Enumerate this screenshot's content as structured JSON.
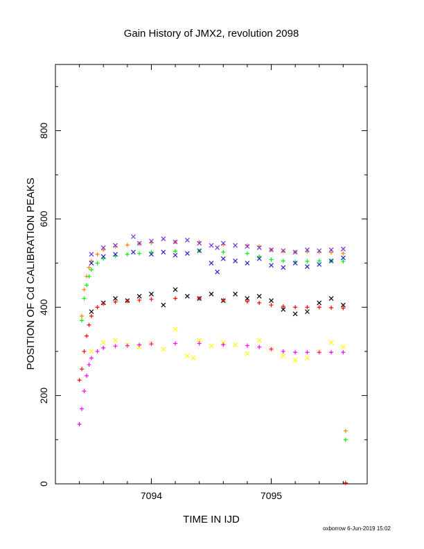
{
  "chart_data": {
    "type": "scatter",
    "title": "Gain History of JMX2, revolution 2098",
    "xlabel": "TIME IN IJD",
    "ylabel": "POSITION OF Cd CALIBRATION PEAKS",
    "xlim": [
      7093.2,
      7095.8
    ],
    "ylim": [
      0,
      950
    ],
    "x_ticks": [
      "7094",
      "7095"
    ],
    "y_ticks": [
      "0",
      "200",
      "400",
      "600",
      "800"
    ],
    "grid": false,
    "legend": "none",
    "series": [
      {
        "color": "#ff8000",
        "marker": "+",
        "x": [
          7093.42,
          7093.44,
          7093.46,
          7093.48,
          7093.5,
          7093.55,
          7093.6,
          7093.7,
          7093.8,
          7093.9,
          7094.0,
          7094.2,
          7094.4,
          7094.6,
          7094.8,
          7094.9,
          7095.0,
          7095.1,
          7095.2,
          7095.3,
          7095.4,
          7095.5,
          7095.6
        ],
        "y": [
          380,
          440,
          470,
          490,
          505,
          520,
          530,
          538,
          541,
          544,
          546,
          548,
          548,
          542,
          540,
          538,
          530,
          527,
          525,
          526,
          525,
          524,
          522
        ]
      },
      {
        "color": "#00ee00",
        "marker": "+",
        "x": [
          7093.42,
          7093.44,
          7093.46,
          7093.48,
          7093.5,
          7093.55,
          7093.6,
          7093.7,
          7093.8,
          7093.9,
          7094.0,
          7094.2,
          7094.4,
          7094.6,
          7094.8,
          7094.9,
          7095.0,
          7095.1,
          7095.2,
          7095.3,
          7095.4,
          7095.5,
          7095.6
        ],
        "y": [
          370,
          420,
          450,
          470,
          485,
          500,
          510,
          516,
          520,
          522,
          525,
          527,
          528,
          525,
          522,
          515,
          508,
          505,
          503,
          504,
          505,
          505,
          504
        ]
      },
      {
        "color": "#7030e0",
        "marker": "x",
        "x": [
          7093.5,
          7093.6,
          7093.7,
          7093.85,
          7093.9,
          7094.0,
          7094.1,
          7094.2,
          7094.3,
          7094.4,
          7094.5,
          7094.55,
          7094.6,
          7094.7,
          7094.8,
          7094.9,
          7095.0,
          7095.1,
          7095.2,
          7095.3,
          7095.4,
          7095.5,
          7095.6
        ],
        "y": [
          520,
          535,
          540,
          560,
          545,
          550,
          555,
          548,
          552,
          545,
          540,
          535,
          545,
          540,
          538,
          535,
          530,
          528,
          525,
          530,
          528,
          530,
          532
        ]
      },
      {
        "color": "#2020d0",
        "marker": "x",
        "x": [
          7093.5,
          7093.6,
          7093.7,
          7093.85,
          7094.0,
          7094.1,
          7094.2,
          7094.3,
          7094.4,
          7094.5,
          7094.55,
          7094.6,
          7094.7,
          7094.8,
          7094.9,
          7095.0,
          7095.1,
          7095.2,
          7095.3,
          7095.4,
          7095.5,
          7095.6
        ],
        "y": [
          500,
          515,
          520,
          525,
          520,
          525,
          518,
          522,
          528,
          500,
          480,
          510,
          505,
          500,
          510,
          495,
          490,
          500,
          492,
          497,
          505,
          512
        ]
      },
      {
        "color": "#000000",
        "marker": "x",
        "x": [
          7093.5,
          7093.6,
          7093.7,
          7093.8,
          7093.9,
          7094.0,
          7094.1,
          7094.2,
          7094.3,
          7094.4,
          7094.5,
          7094.6,
          7094.7,
          7094.8,
          7094.9,
          7095.0,
          7095.1,
          7095.2,
          7095.3,
          7095.4,
          7095.5,
          7095.6
        ],
        "y": [
          390,
          410,
          420,
          415,
          425,
          430,
          405,
          440,
          425,
          420,
          430,
          415,
          430,
          420,
          425,
          415,
          395,
          385,
          390,
          410,
          420,
          405
        ]
      },
      {
        "color": "#ff0000",
        "marker": "+",
        "x": [
          7093.4,
          7093.42,
          7093.44,
          7093.46,
          7093.48,
          7093.5,
          7093.55,
          7093.6,
          7093.7,
          7093.8,
          7093.9,
          7094.0,
          7094.2,
          7094.4,
          7094.6,
          7094.8,
          7094.9,
          7095.0,
          7095.1,
          7095.2,
          7095.3,
          7095.4,
          7095.5,
          7095.6
        ],
        "y": [
          235,
          260,
          300,
          335,
          360,
          380,
          400,
          408,
          412,
          414,
          416,
          418,
          420,
          420,
          416,
          413,
          410,
          405,
          402,
          400,
          400,
          400,
          399,
          398
        ]
      },
      {
        "color": "#ffff00",
        "marker": "x",
        "x": [
          7093.5,
          7093.6,
          7093.7,
          7093.8,
          7093.9,
          7094.0,
          7094.1,
          7094.2,
          7094.3,
          7094.35,
          7094.4,
          7094.5,
          7094.6,
          7094.7,
          7094.8,
          7094.9,
          7095.0,
          7095.1,
          7095.2,
          7095.3,
          7095.4,
          7095.5,
          7095.6
        ],
        "y": [
          300,
          320,
          325,
          315,
          310,
          318,
          305,
          350,
          290,
          285,
          325,
          312,
          320,
          315,
          295,
          325,
          305,
          290,
          280,
          285,
          300,
          320,
          310
        ]
      },
      {
        "color": "#ff00ff",
        "marker": "+",
        "x": [
          7093.4,
          7093.42,
          7093.44,
          7093.46,
          7093.48,
          7093.5,
          7093.55,
          7093.6,
          7093.7,
          7093.8,
          7093.9,
          7094.0,
          7094.2,
          7094.4,
          7094.6,
          7094.8,
          7094.9,
          7095.0,
          7095.1,
          7095.2,
          7095.3,
          7095.4,
          7095.5,
          7095.6
        ],
        "y": [
          135,
          170,
          210,
          245,
          270,
          285,
          300,
          308,
          312,
          313,
          315,
          317,
          318,
          318,
          315,
          313,
          310,
          305,
          300,
          298,
          298,
          298,
          298,
          298
        ]
      },
      {
        "color": "#ff8000",
        "marker": "+",
        "x": [
          7095.62
        ],
        "y": [
          120
        ]
      },
      {
        "color": "#00ee00",
        "marker": "+",
        "x": [
          7095.62
        ],
        "y": [
          100
        ]
      },
      {
        "color": "#ff0000",
        "marker": "+",
        "x": [
          7095.62
        ],
        "y": [
          2
        ]
      }
    ]
  },
  "footer": {
    "credit": "oxborrow  6-Jun-2019 15:02"
  }
}
